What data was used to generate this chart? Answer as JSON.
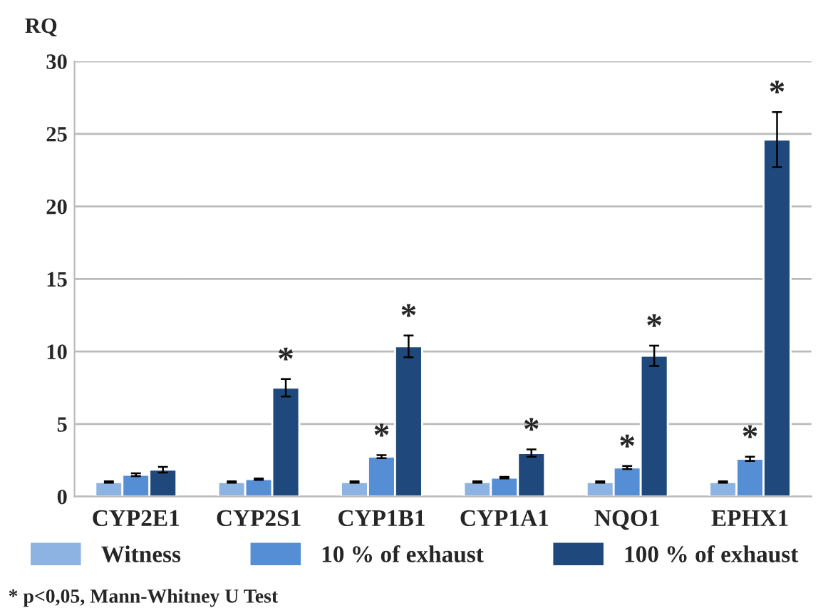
{
  "chart_data": {
    "type": "bar",
    "ylabel": "RQ",
    "categories": [
      "CYP2E1",
      "CYP2S1",
      "CYP1B1",
      "CYP1A1",
      "NQO1",
      "EPHX1"
    ],
    "series": [
      {
        "name": "Witness",
        "color": "#8db3e2",
        "values": [
          1.0,
          1.0,
          1.0,
          1.0,
          1.0,
          1.0
        ],
        "errors": [
          0.05,
          0.05,
          0.05,
          0.05,
          0.05,
          0.05
        ]
      },
      {
        "name": "10 % of exhaust",
        "color": "#558ed5",
        "values": [
          1.5,
          1.2,
          2.75,
          1.3,
          2.0,
          2.6
        ],
        "errors": [
          0.1,
          0.05,
          0.1,
          0.05,
          0.1,
          0.15
        ],
        "value_labels": [
          null,
          null,
          "*",
          null,
          "*",
          "*"
        ]
      },
      {
        "name": "100 % of exhaust",
        "color": "#1f497d",
        "values": [
          1.85,
          7.5,
          10.35,
          3.0,
          9.7,
          24.6
        ],
        "errors": [
          0.2,
          0.6,
          0.75,
          0.25,
          0.7,
          1.9
        ],
        "value_labels": [
          null,
          "*",
          "*",
          "*",
          "*",
          "*"
        ]
      }
    ],
    "ylim": [
      0,
      30
    ],
    "yticks": [
      0,
      5,
      10,
      15,
      20,
      25,
      30
    ],
    "grid": "y",
    "legend": "bottom",
    "annotations": [
      "* p<0,05, Mann-Whitney U Test"
    ]
  }
}
